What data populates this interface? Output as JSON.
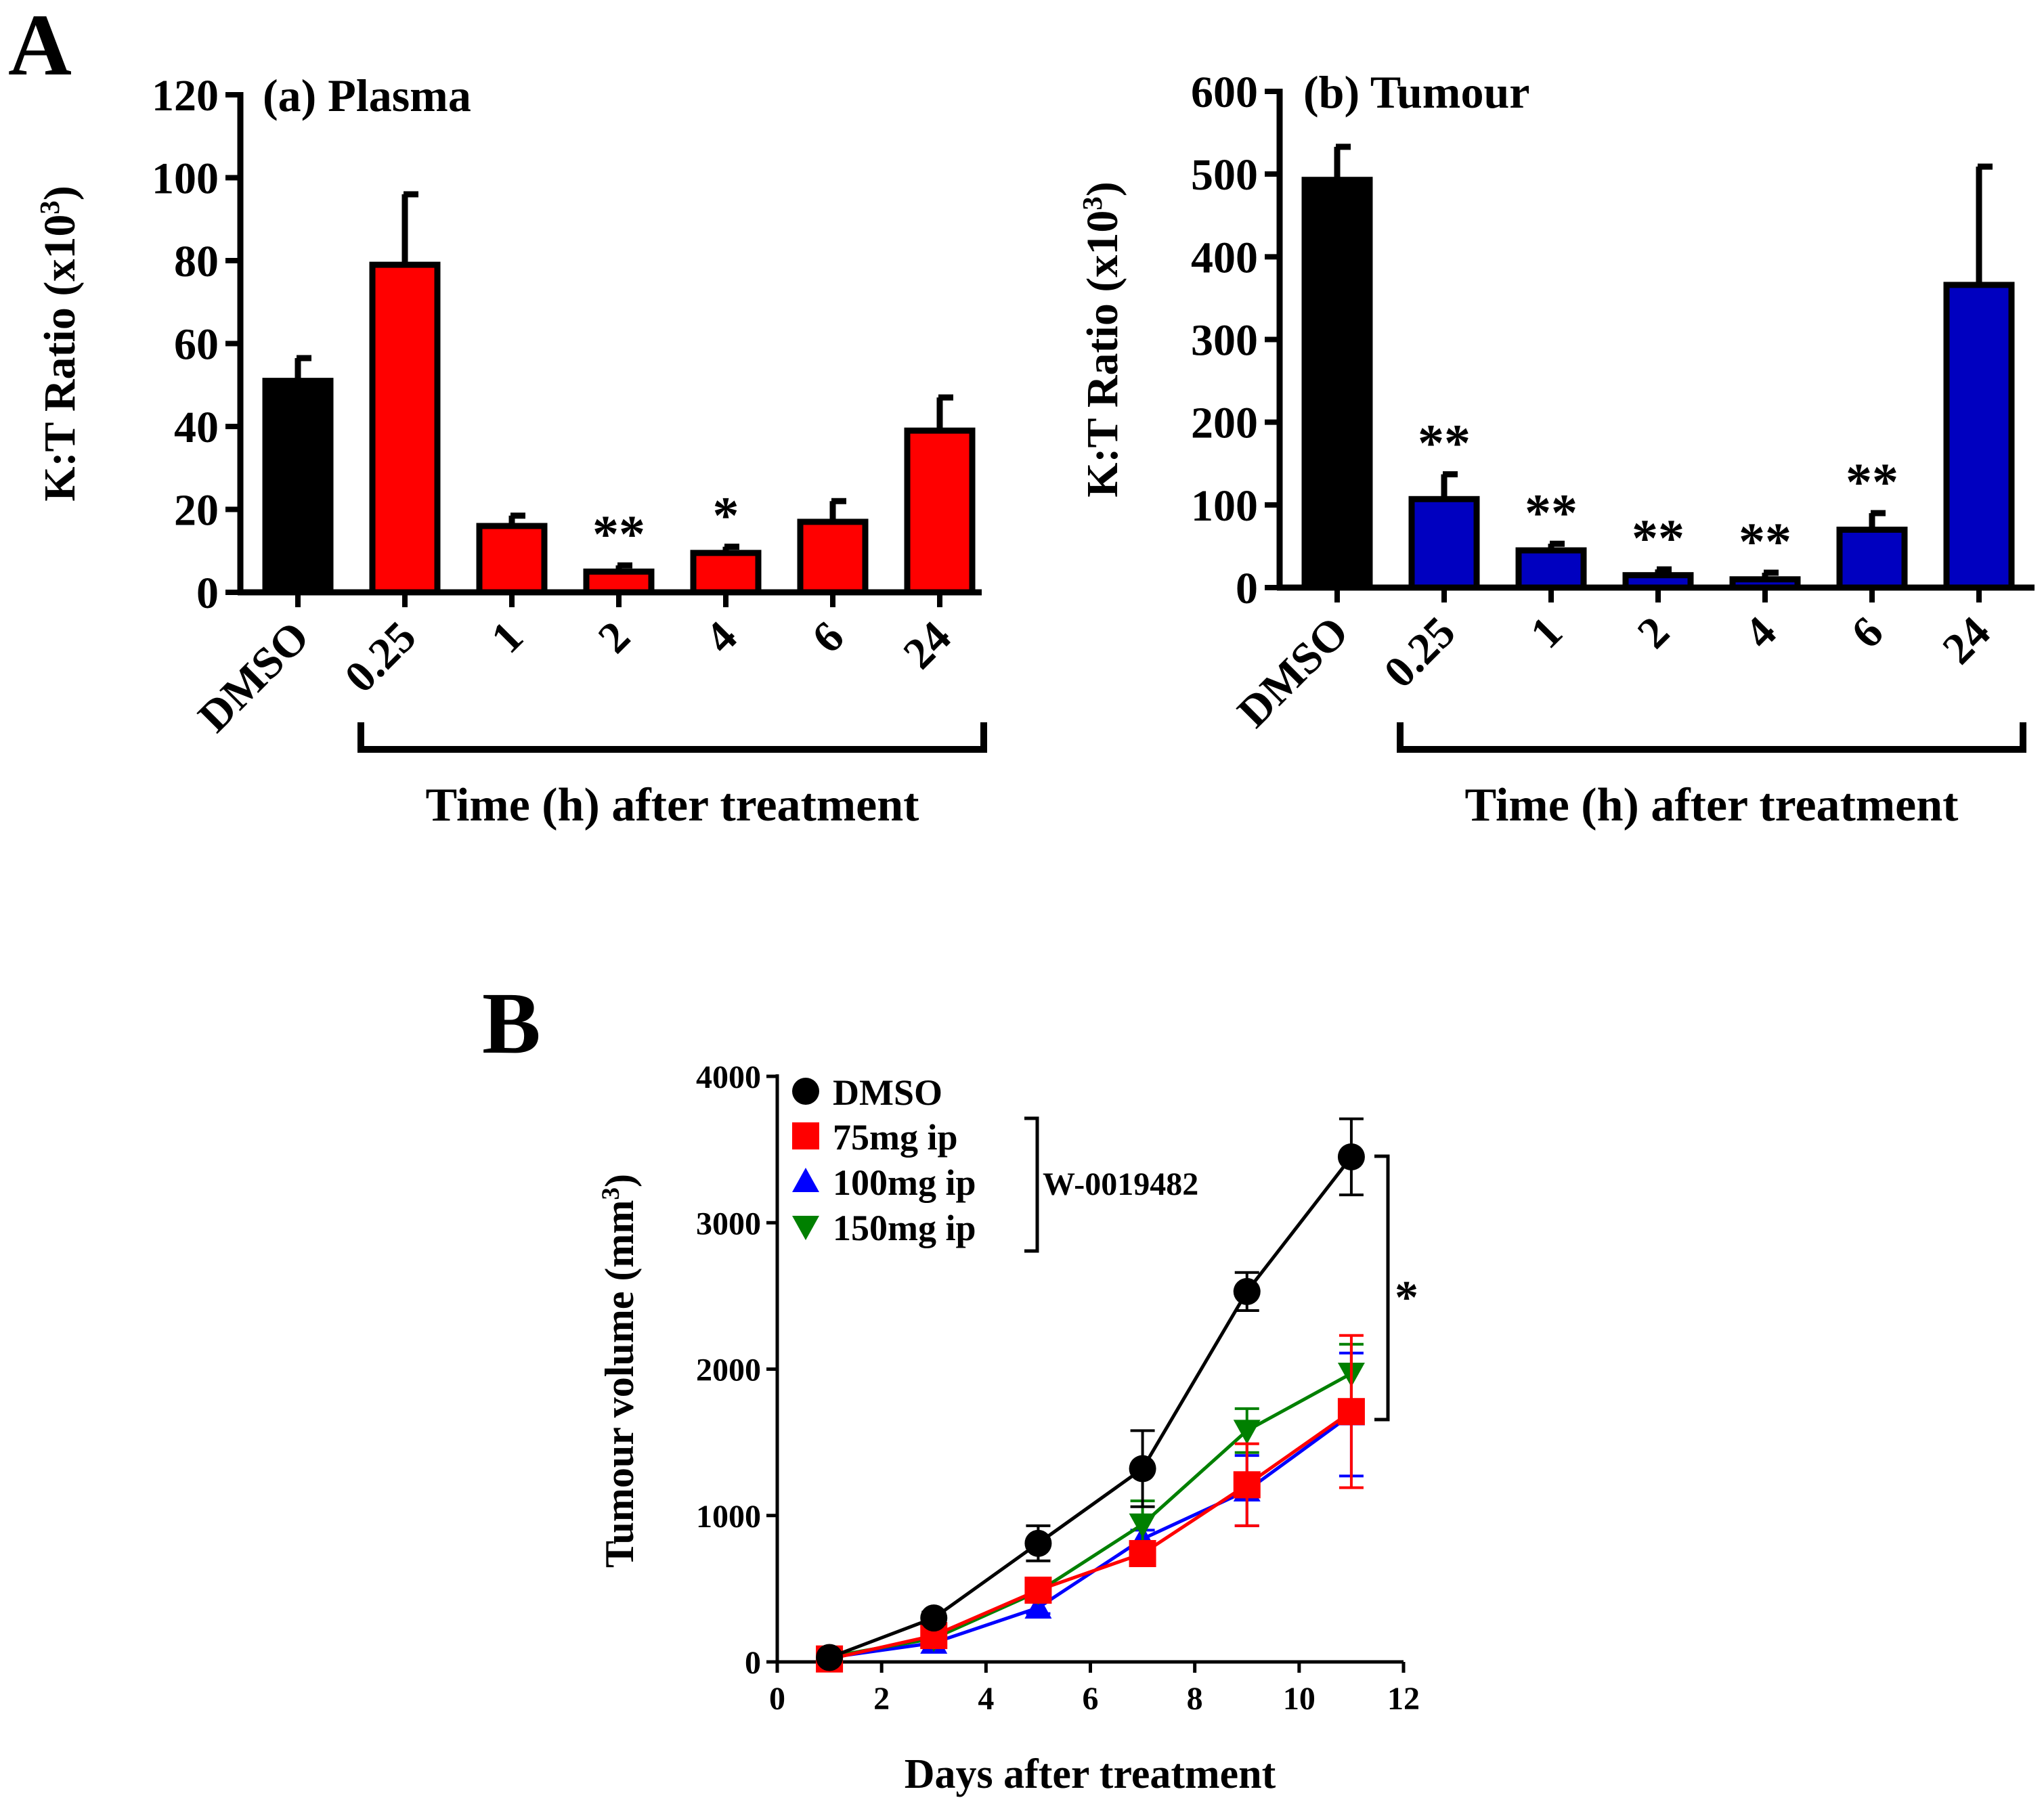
{
  "panel_labels": {
    "A": "A",
    "B": "B"
  },
  "chart_data": [
    {
      "id": "plasma",
      "type": "bar",
      "title": "(a) Plasma",
      "ylabel_main": "K:T Ratio (x10",
      "ylabel_sup": "3",
      "ylabel_end": ")",
      "xlabel": "Time (h) after treatment",
      "categories": [
        "DMSO",
        "0.25",
        "1",
        "2",
        "4",
        "6",
        "24"
      ],
      "values": [
        51,
        79,
        16,
        5,
        9.5,
        17,
        39
      ],
      "errors": [
        5.5,
        17,
        2.5,
        1.5,
        1.5,
        5,
        8
      ],
      "colors": [
        "#000000",
        "#ff0000",
        "#ff0000",
        "#ff0000",
        "#ff0000",
        "#ff0000",
        "#ff0000"
      ],
      "significance": [
        "",
        "",
        "",
        "**",
        "*",
        "",
        ""
      ],
      "ylim": [
        0,
        120
      ],
      "yticks": [
        0,
        20,
        40,
        60,
        80,
        100,
        120
      ]
    },
    {
      "id": "tumour",
      "type": "bar",
      "title": "(b) Tumour",
      "ylabel_main": "K:T Ratio (x10",
      "ylabel_sup": "3",
      "ylabel_end": ")",
      "xlabel": "Time (h) after treatment",
      "categories": [
        "DMSO",
        "0.25",
        "1",
        "2",
        "4",
        "6",
        "24"
      ],
      "values": [
        493,
        107,
        45,
        15,
        10,
        70,
        366
      ],
      "errors": [
        40,
        30,
        8,
        7,
        8,
        20,
        143
      ],
      "colors": [
        "#000000",
        "#0000c0",
        "#0000c0",
        "#0000c0",
        "#0000c0",
        "#0000c0",
        "#0000c0"
      ],
      "significance": [
        "",
        "**",
        "**",
        "**",
        "**",
        "**",
        ""
      ],
      "ylim": [
        0,
        600
      ],
      "yticks": [
        0,
        100,
        200,
        300,
        400,
        500,
        600
      ]
    },
    {
      "id": "tumour_volume",
      "type": "line",
      "ylabel_main": "Tumour volume (mm",
      "ylabel_sup": "3",
      "ylabel_end": ")",
      "xlabel": "Days after treatment",
      "x": [
        1,
        3,
        5,
        7,
        9,
        11
      ],
      "xlim": [
        0,
        12
      ],
      "xticks": [
        0,
        2,
        4,
        6,
        8,
        10,
        12
      ],
      "ylim": [
        0,
        4000
      ],
      "yticks": [
        0,
        1000,
        2000,
        3000,
        4000
      ],
      "group_label": "W-0019482",
      "significance": "*",
      "series": [
        {
          "name": "DMSO",
          "color": "#000000",
          "marker": "circle",
          "values": [
            30,
            300,
            810,
            1320,
            2530,
            3450
          ],
          "errors": [
            20,
            40,
            120,
            260,
            130,
            260
          ]
        },
        {
          "name": "75mg ip",
          "color": "#ff0000",
          "marker": "square",
          "values": [
            20,
            180,
            490,
            740,
            1210,
            1710
          ],
          "errors": [
            15,
            30,
            50,
            60,
            280,
            520
          ]
        },
        {
          "name": "100mg ip",
          "color": "#0000ff",
          "marker": "triangle-up",
          "values": [
            30,
            130,
            370,
            840,
            1170,
            1690
          ],
          "errors": [
            15,
            25,
            40,
            60,
            240,
            420
          ]
        },
        {
          "name": "150mg ip",
          "color": "#008000",
          "marker": "triangle-down",
          "values": [
            35,
            160,
            480,
            940,
            1580,
            1970
          ],
          "errors": [
            15,
            30,
            50,
            160,
            150,
            200
          ]
        }
      ]
    }
  ]
}
